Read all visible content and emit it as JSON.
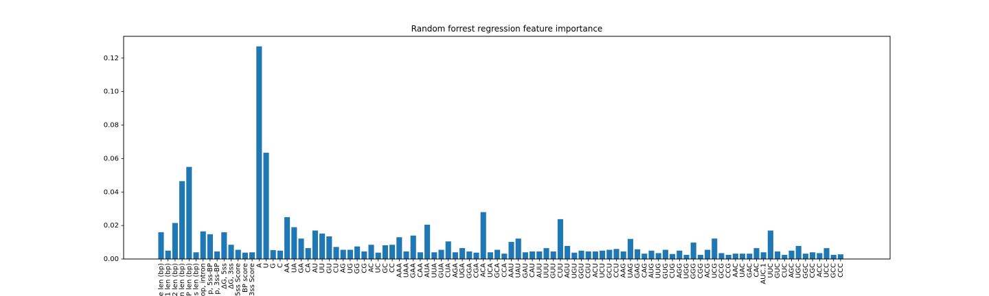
{
  "chart_data": {
    "type": "bar",
    "title": "Random forrest regression feature importance",
    "xlabel": "",
    "ylabel": "",
    "ylim": [
      0,
      0.133
    ],
    "yticks": [
      0.0,
      0.02,
      0.04,
      0.06,
      0.08,
      0.1,
      0.12
    ],
    "ytick_labels": [
      "0.00",
      "0.02",
      "0.04",
      "0.06",
      "0.08",
      "0.10",
      "0.12"
    ],
    "bar_color": "#1f77b4",
    "grid": false,
    "categories": [
      "e len (bp)",
      "1 len (bp)",
      "2 len (bp)",
      "n len (bp)",
      "P len (bp)",
      "s len (bp)",
      "op, intron",
      "p, 5ss-BP",
      "p, 3ss-BP",
      "ΔG, 5ss",
      "ΔG, 3ss",
      "5ss Score",
      "BP score",
      "3ss Score",
      "A",
      "U",
      "G",
      "C",
      "AA",
      "UA",
      "GA",
      "CA",
      "AU",
      "UU",
      "GU",
      "CU",
      "AG",
      "UG",
      "GG",
      "CG",
      "AC",
      "UC",
      "GC",
      "CC",
      "AAA",
      "UAA",
      "GAA",
      "CAA",
      "AUA",
      "UUA",
      "GUA",
      "CUA",
      "AGA",
      "UGA",
      "GGA",
      "CGA",
      "ACA",
      "UCA",
      "GCA",
      "CCA",
      "AAU",
      "UAU",
      "GAU",
      "CAU",
      "AUU",
      "UUU",
      "GUU",
      "CUU",
      "AGU",
      "UGU",
      "GGU",
      "CGU",
      "ACU",
      "UCU",
      "GCU",
      "CCU",
      "AAG",
      "UAG",
      "GAG",
      "CAG",
      "AUG",
      "UUG",
      "GUG",
      "CUG",
      "AGG",
      "UGG",
      "GGG",
      "CGG",
      "ACG",
      "UCG",
      "GCG",
      "CCG",
      "AAC",
      "UAC",
      "GAC",
      "CAC",
      "AUC.1",
      "UUC",
      "GUC",
      "CUC",
      "AGC",
      "UGC",
      "GGC",
      "CGC",
      "ACC",
      "UCC",
      "GCC",
      "CCC"
    ],
    "values": [
      0.016,
      0.005,
      0.0215,
      0.0465,
      0.055,
      0.004,
      0.0165,
      0.0148,
      0.0045,
      0.016,
      0.0085,
      0.0055,
      0.0038,
      0.004,
      0.127,
      0.0635,
      0.0053,
      0.005,
      0.025,
      0.019,
      0.0122,
      0.0065,
      0.017,
      0.0152,
      0.0135,
      0.0072,
      0.0055,
      0.0055,
      0.0075,
      0.0045,
      0.0085,
      0.0038,
      0.0082,
      0.0085,
      0.013,
      0.0045,
      0.014,
      0.004,
      0.0205,
      0.004,
      0.0055,
      0.0105,
      0.004,
      0.0065,
      0.0045,
      0.0038,
      0.028,
      0.004,
      0.0055,
      0.0032,
      0.0102,
      0.0122,
      0.004,
      0.0045,
      0.0045,
      0.0065,
      0.0045,
      0.0238,
      0.0078,
      0.0038,
      0.005,
      0.0045,
      0.0045,
      0.005,
      0.0055,
      0.006,
      0.0045,
      0.012,
      0.0058,
      0.0032,
      0.005,
      0.0035,
      0.0055,
      0.003,
      0.005,
      0.0025,
      0.0098,
      0.0025,
      0.0055,
      0.0122,
      0.0035,
      0.0025,
      0.0032,
      0.0032,
      0.0032,
      0.0065,
      0.004,
      0.017,
      0.0045,
      0.0025,
      0.005,
      0.0078,
      0.0032,
      0.004,
      0.0035,
      0.0065,
      0.0025,
      0.0028
    ]
  }
}
